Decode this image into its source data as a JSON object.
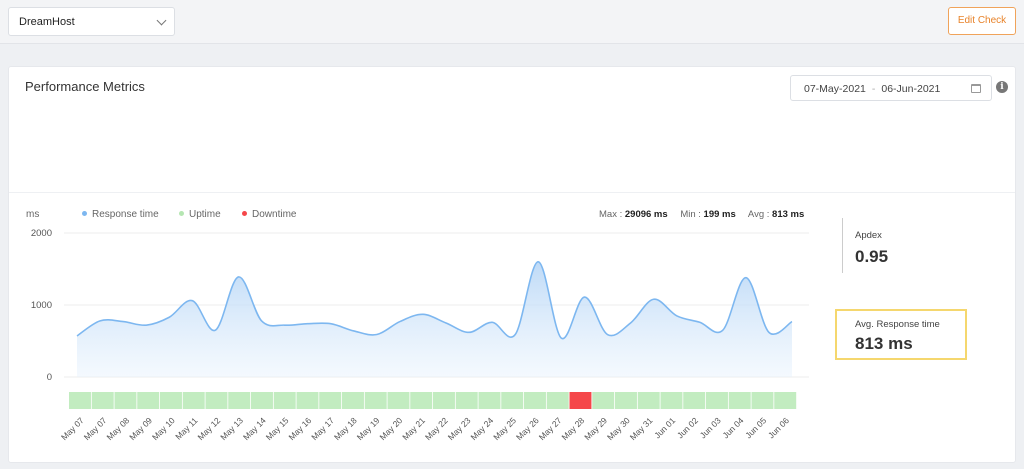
{
  "header": {
    "site_select": "DreamHost",
    "edit_label": "Edit Check"
  },
  "card": {
    "title": "Performance Metrics",
    "date_from": "07-May-2021",
    "date_sep": "-",
    "date_to": "06-Jun-2021"
  },
  "legend": {
    "unit": "ms",
    "items": [
      "Response time",
      "Uptime",
      "Downtime"
    ],
    "colors": {
      "response": "#7db7f0",
      "uptime": "#c2ecc0",
      "downtime": "#f5474a"
    }
  },
  "stats": {
    "max_label": "Max :",
    "max_value": "29096 ms",
    "min_label": "Min :",
    "min_value": "199 ms",
    "avg_label": "Avg :",
    "avg_value": "813 ms"
  },
  "side": {
    "apdex_label": "Apdex",
    "apdex_value": "0.95",
    "avg_label": "Avg. Response time",
    "avg_value": "813 ms"
  },
  "chart_data": {
    "type": "area",
    "ylabel": "ms",
    "ylim": [
      0,
      2000
    ],
    "yticks": [
      2000,
      1000,
      0
    ],
    "grid": true,
    "series": [
      {
        "name": "Response time",
        "x": [
          "May 07",
          "May 07",
          "May 08",
          "May 09",
          "May 10",
          "May 11",
          "May 12",
          "May 13",
          "May 14",
          "May 15",
          "May 16",
          "May 17",
          "May 18",
          "May 19",
          "May 20",
          "May 21",
          "May 22",
          "May 23",
          "May 24",
          "May 25",
          "May 26",
          "May 27",
          "May 28",
          "May 29",
          "May 30",
          "May 31",
          "Jun 01",
          "Jun 02",
          "Jun 03",
          "Jun 04",
          "Jun 05",
          "Jun 06"
        ],
        "values": [
          570,
          780,
          770,
          720,
          830,
          1060,
          650,
          1390,
          780,
          720,
          740,
          740,
          640,
          590,
          770,
          870,
          750,
          620,
          760,
          590,
          1600,
          540,
          1110,
          590,
          750,
          1080,
          850,
          760,
          650,
          1380,
          620,
          770
        ]
      }
    ],
    "status_bar": {
      "labels": [
        "May 07",
        "May 07",
        "May 08",
        "May 09",
        "May 10",
        "May 11",
        "May 12",
        "May 13",
        "May 14",
        "May 15",
        "May 16",
        "May 17",
        "May 18",
        "May 19",
        "May 20",
        "May 21",
        "May 22",
        "May 23",
        "May 24",
        "May 25",
        "May 26",
        "May 27",
        "May 28",
        "May 29",
        "May 30",
        "May 31",
        "Jun 01",
        "Jun 02",
        "Jun 03",
        "Jun 04",
        "Jun 05",
        "Jun 06"
      ],
      "status": [
        "up",
        "up",
        "up",
        "up",
        "up",
        "up",
        "up",
        "up",
        "up",
        "up",
        "up",
        "up",
        "up",
        "up",
        "up",
        "up",
        "up",
        "up",
        "up",
        "up",
        "up",
        "up",
        "down",
        "up",
        "up",
        "up",
        "up",
        "up",
        "up",
        "up",
        "up",
        "up"
      ]
    }
  }
}
